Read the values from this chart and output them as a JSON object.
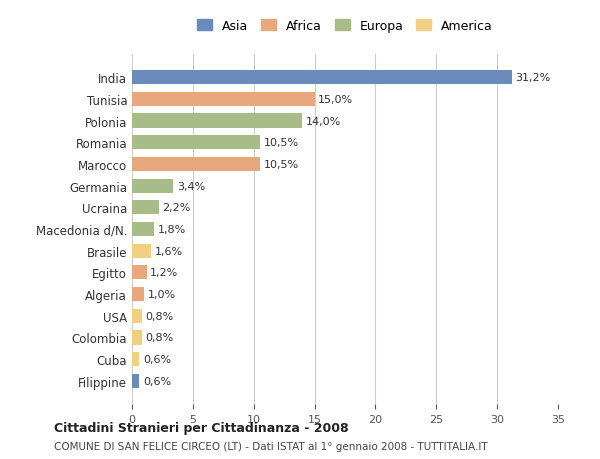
{
  "countries": [
    "India",
    "Tunisia",
    "Polonia",
    "Romania",
    "Marocco",
    "Germania",
    "Ucraina",
    "Macedonia d/N.",
    "Brasile",
    "Egitto",
    "Algeria",
    "USA",
    "Colombia",
    "Cuba",
    "Filippine"
  ],
  "values": [
    31.2,
    15.0,
    14.0,
    10.5,
    10.5,
    3.4,
    2.2,
    1.8,
    1.6,
    1.2,
    1.0,
    0.8,
    0.8,
    0.6,
    0.6
  ],
  "labels": [
    "31,2%",
    "15,0%",
    "14,0%",
    "10,5%",
    "10,5%",
    "3,4%",
    "2,2%",
    "1,8%",
    "1,6%",
    "1,2%",
    "1,0%",
    "0,8%",
    "0,8%",
    "0,6%",
    "0,6%"
  ],
  "continent": [
    "Asia",
    "Africa",
    "Europa",
    "Europa",
    "Africa",
    "Europa",
    "Europa",
    "Europa",
    "America",
    "Africa",
    "Africa",
    "America",
    "America",
    "America",
    "Asia"
  ],
  "colors": {
    "Asia": "#6b8cba",
    "Africa": "#e8a87c",
    "Europa": "#a8bc8a",
    "America": "#f0d080"
  },
  "legend_colors": {
    "Asia": "#6b8cba",
    "Africa": "#e8a87c",
    "Europa": "#a8bc8a",
    "America": "#f0d080"
  },
  "xlim": [
    0,
    35
  ],
  "xticks": [
    0,
    5,
    10,
    15,
    20,
    25,
    30,
    35
  ],
  "title1": "Cittadini Stranieri per Cittadinanza - 2008",
  "title2": "COMUNE DI SAN FELICE CIRCEO (LT) - Dati ISTAT al 1° gennaio 2008 - TUTTITALIA.IT",
  "bg_color": "#ffffff",
  "grid_color": "#cccccc",
  "bar_height": 0.65,
  "legend_order": [
    "Asia",
    "Africa",
    "Europa",
    "America"
  ]
}
